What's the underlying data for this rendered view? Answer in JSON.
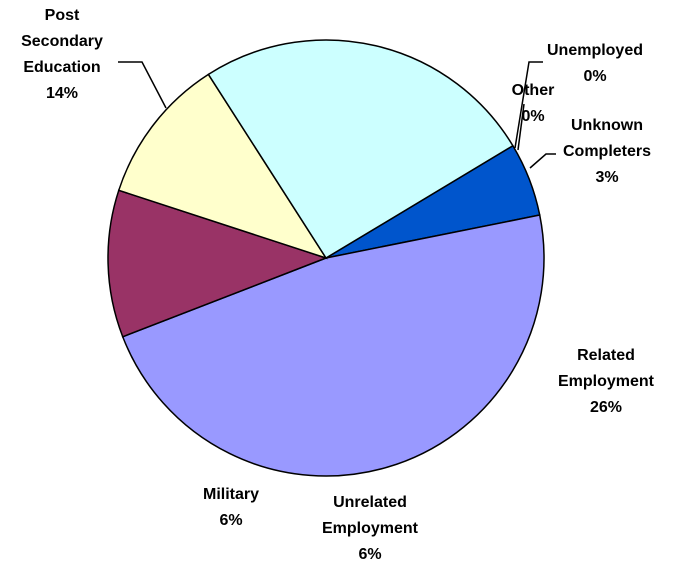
{
  "chart_data": {
    "type": "pie",
    "categories": [
      "Unemployed",
      "Other",
      "Unknown Completers",
      "Related Employment",
      "Unrelated Employment",
      "Military",
      "Post Secondary Education"
    ],
    "values": [
      0,
      0,
      3,
      26,
      6,
      6,
      14
    ],
    "value_labels": [
      "0%",
      "0%",
      "3%",
      "26%",
      "6%",
      "6%",
      "14%"
    ],
    "colors": [
      "#3366ff",
      "#00ccff",
      "#0055cc",
      "#9999ff",
      "#993366",
      "#ffffcc",
      "#ccffff"
    ],
    "legend": false
  }
}
